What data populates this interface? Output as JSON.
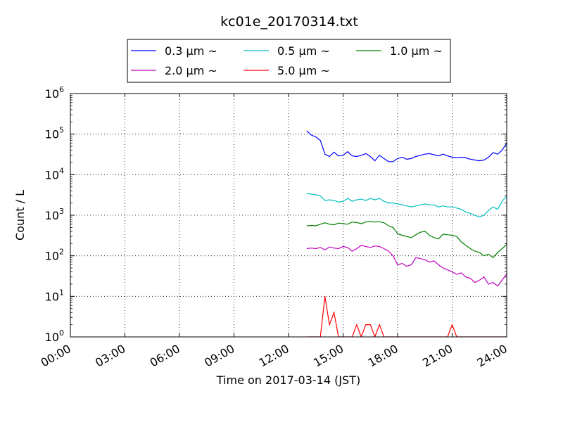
{
  "chart_data": {
    "type": "line",
    "title": "kc01e_20170314.txt",
    "xlabel": "Time on 2017-03-14 (JST)",
    "ylabel": "Count / L",
    "y_scale": "log",
    "ylim": [
      1,
      1000000
    ],
    "xlim": [
      "00:00",
      "24:00"
    ],
    "x_tick_labels": [
      "00:00",
      "03:00",
      "06:00",
      "09:00",
      "12:00",
      "15:00",
      "18:00",
      "21:00",
      "24:00"
    ],
    "y_tick_labels": [
      {
        "base": "10",
        "exp": "0"
      },
      {
        "base": "10",
        "exp": "1"
      },
      {
        "base": "10",
        "exp": "2"
      },
      {
        "base": "10",
        "exp": "3"
      },
      {
        "base": "10",
        "exp": "4"
      },
      {
        "base": "10",
        "exp": "5"
      },
      {
        "base": "10",
        "exp": "6"
      }
    ],
    "grid": true,
    "legend_position": "top",
    "x": [
      "13:00",
      "13:15",
      "13:30",
      "13:45",
      "14:00",
      "14:15",
      "14:30",
      "14:45",
      "15:00",
      "15:15",
      "15:30",
      "15:45",
      "16:00",
      "16:15",
      "16:30",
      "16:45",
      "17:00",
      "17:15",
      "17:30",
      "17:45",
      "18:00",
      "18:15",
      "18:30",
      "18:45",
      "19:00",
      "19:15",
      "19:30",
      "19:45",
      "20:00",
      "20:15",
      "20:30",
      "20:45",
      "21:00",
      "21:15",
      "21:30",
      "21:45",
      "22:00",
      "22:15",
      "22:30",
      "22:45",
      "23:00",
      "23:15",
      "23:30",
      "23:45",
      "24:00"
    ],
    "series": [
      {
        "name": "0.3 μm ~",
        "color": "#0000ff",
        "values": [
          120000,
          95000,
          85000,
          70000,
          32000,
          28000,
          36000,
          29000,
          30000,
          37000,
          29000,
          28000,
          30000,
          33000,
          28000,
          22000,
          30000,
          25000,
          21000,
          21000,
          25000,
          27000,
          24000,
          25000,
          28000,
          30000,
          32000,
          33000,
          31000,
          29000,
          32000,
          29000,
          27000,
          26000,
          27000,
          26000,
          24000,
          23000,
          22000,
          23000,
          27000,
          35000,
          32000,
          40000,
          60000
        ]
      },
      {
        "name": "0.5 μm ~",
        "color": "#00bfbf",
        "values": [
          3500,
          3300,
          3200,
          3000,
          2300,
          2400,
          2300,
          2100,
          2200,
          2600,
          2200,
          2400,
          2500,
          2300,
          2600,
          2400,
          2600,
          2200,
          2000,
          2000,
          1900,
          1800,
          1700,
          1600,
          1700,
          1800,
          1900,
          1800,
          1800,
          1600,
          1700,
          1600,
          1600,
          1500,
          1400,
          1200,
          1100,
          1000,
          900,
          1000,
          1300,
          1600,
          1400,
          2200,
          3000
        ]
      },
      {
        "name": "1.0 μm ~",
        "color": "#008000",
        "values": [
          550,
          560,
          550,
          600,
          650,
          600,
          580,
          640,
          620,
          600,
          680,
          660,
          620,
          680,
          700,
          680,
          690,
          650,
          550,
          500,
          350,
          320,
          300,
          280,
          330,
          380,
          400,
          320,
          280,
          260,
          340,
          330,
          320,
          300,
          220,
          180,
          150,
          130,
          120,
          100,
          110,
          90,
          120,
          150,
          190
        ]
      },
      {
        "name": "2.0 μm ~",
        "color": "#bf00bf",
        "values": [
          150,
          155,
          150,
          160,
          140,
          165,
          155,
          150,
          170,
          160,
          130,
          150,
          180,
          170,
          160,
          175,
          170,
          150,
          130,
          100,
          60,
          65,
          55,
          60,
          90,
          85,
          80,
          70,
          75,
          60,
          50,
          45,
          40,
          35,
          38,
          30,
          28,
          22,
          25,
          30,
          20,
          22,
          18,
          25,
          36
        ]
      },
      {
        "name": "5.0 μm ~",
        "color": "#ff0000",
        "values": [
          0,
          0,
          0,
          0,
          10,
          2,
          4,
          0,
          0,
          0,
          0,
          2,
          1,
          2,
          2,
          1,
          2,
          1,
          0,
          0,
          0,
          0,
          0,
          0,
          0,
          0,
          0,
          0,
          0,
          0,
          0,
          0,
          2,
          1,
          0,
          0,
          0,
          0,
          0,
          0,
          0,
          0,
          0,
          0,
          0
        ]
      }
    ]
  }
}
